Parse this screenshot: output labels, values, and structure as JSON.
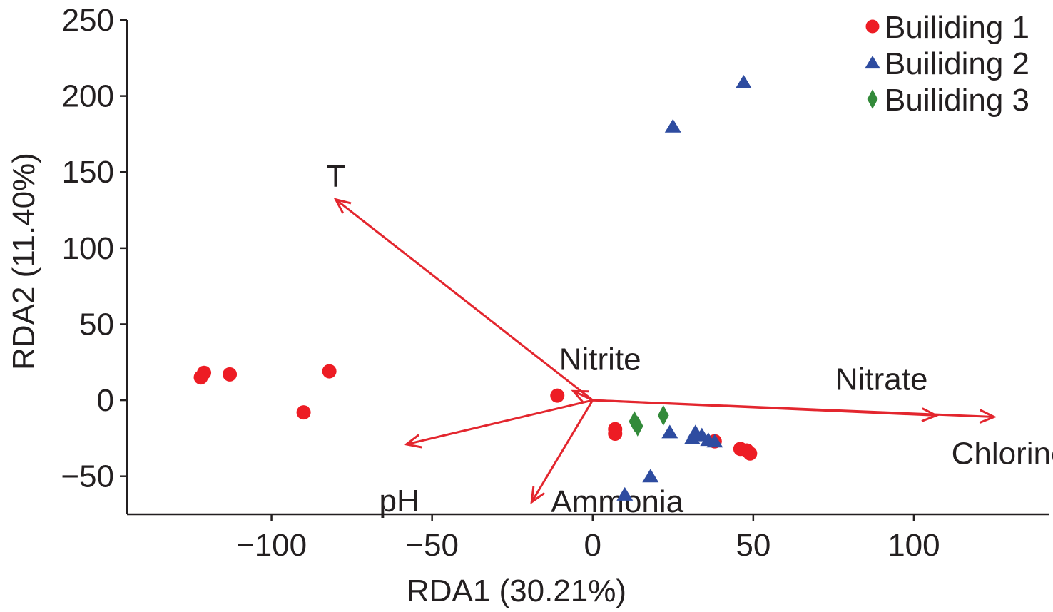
{
  "chart_data": {
    "type": "scatter",
    "xlabel": "RDA1 (30.21%)",
    "ylabel": "RDA2 (11.40%)",
    "xlim": [
      -145,
      142
    ],
    "ylim": [
      -75,
      250
    ],
    "xticks": [
      -100,
      -50,
      0,
      50,
      100
    ],
    "yticks": [
      -50,
      0,
      50,
      100,
      150,
      200,
      250
    ],
    "xtick_labels": [
      "−100",
      "−50",
      "0",
      "50",
      "100"
    ],
    "ytick_labels": [
      "−50",
      "0",
      "50",
      "100",
      "150",
      "200",
      "250"
    ],
    "grid": false,
    "legend_position": "top-right",
    "series": [
      {
        "name": "Builiding 1",
        "marker": "circle",
        "color": "#ed1c24",
        "points": [
          [
            -121,
            18
          ],
          [
            -122,
            15
          ],
          [
            -113,
            17
          ],
          [
            -82,
            19
          ],
          [
            -90,
            -8
          ],
          [
            -11,
            3
          ],
          [
            7,
            -19
          ],
          [
            7,
            -22
          ],
          [
            46,
            -32
          ],
          [
            48,
            -33
          ],
          [
            49,
            -35
          ],
          [
            38,
            -27
          ]
        ]
      },
      {
        "name": "Builiding 2",
        "marker": "triangle",
        "color": "#2e4ca0",
        "points": [
          [
            47,
            209
          ],
          [
            25,
            180
          ],
          [
            24,
            -21
          ],
          [
            32,
            -21
          ],
          [
            34,
            -23
          ],
          [
            31,
            -25
          ],
          [
            36,
            -26
          ],
          [
            38,
            -27
          ],
          [
            18,
            -50
          ],
          [
            10,
            -62
          ]
        ]
      },
      {
        "name": "Builiding 3",
        "marker": "diamond",
        "color": "#338a3a",
        "points": [
          [
            22,
            -10
          ],
          [
            13,
            -14
          ],
          [
            14,
            -17
          ]
        ]
      }
    ],
    "vectors": {
      "color": "#e3262e",
      "origin": [
        0,
        0
      ],
      "items": [
        {
          "name": "T",
          "x": -80,
          "y": 132
        },
        {
          "name": "Nitrite",
          "x": -6,
          "y": 6
        },
        {
          "name": "Nitrate",
          "x": 107,
          "y": -10
        },
        {
          "name": "Chlorine",
          "x": 125,
          "y": -11
        },
        {
          "name": "pH",
          "x": -58,
          "y": -29
        },
        {
          "name": "Ammonia",
          "x": -19,
          "y": -67
        }
      ]
    }
  }
}
